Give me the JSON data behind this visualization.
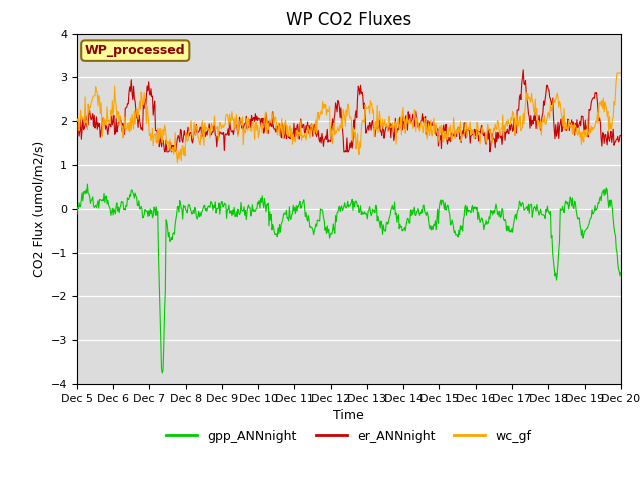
{
  "title": "WP CO2 Fluxes",
  "xlabel": "Time",
  "ylabel": "CO2 Flux (umol/m2/s)",
  "ylim": [
    -4.0,
    4.0
  ],
  "yticks": [
    -4.0,
    -3.0,
    -2.0,
    -1.0,
    0.0,
    1.0,
    2.0,
    3.0,
    4.0
  ],
  "n_days": 15,
  "n_per_day": 48,
  "colors": {
    "gpp": "#00CC00",
    "er": "#CC0000",
    "wc": "#FFA500"
  },
  "legend_labels": [
    "gpp_ANNnight",
    "er_ANNnight",
    "wc_gf"
  ],
  "watermark_text": "WP_processed",
  "watermark_bg": "#FFFF99",
  "watermark_border": "#8B6914",
  "watermark_text_color": "#8B0000",
  "bg_color": "#DCDCDC",
  "line_width": 0.8,
  "title_fontsize": 12,
  "axis_label_fontsize": 9,
  "tick_fontsize": 8
}
